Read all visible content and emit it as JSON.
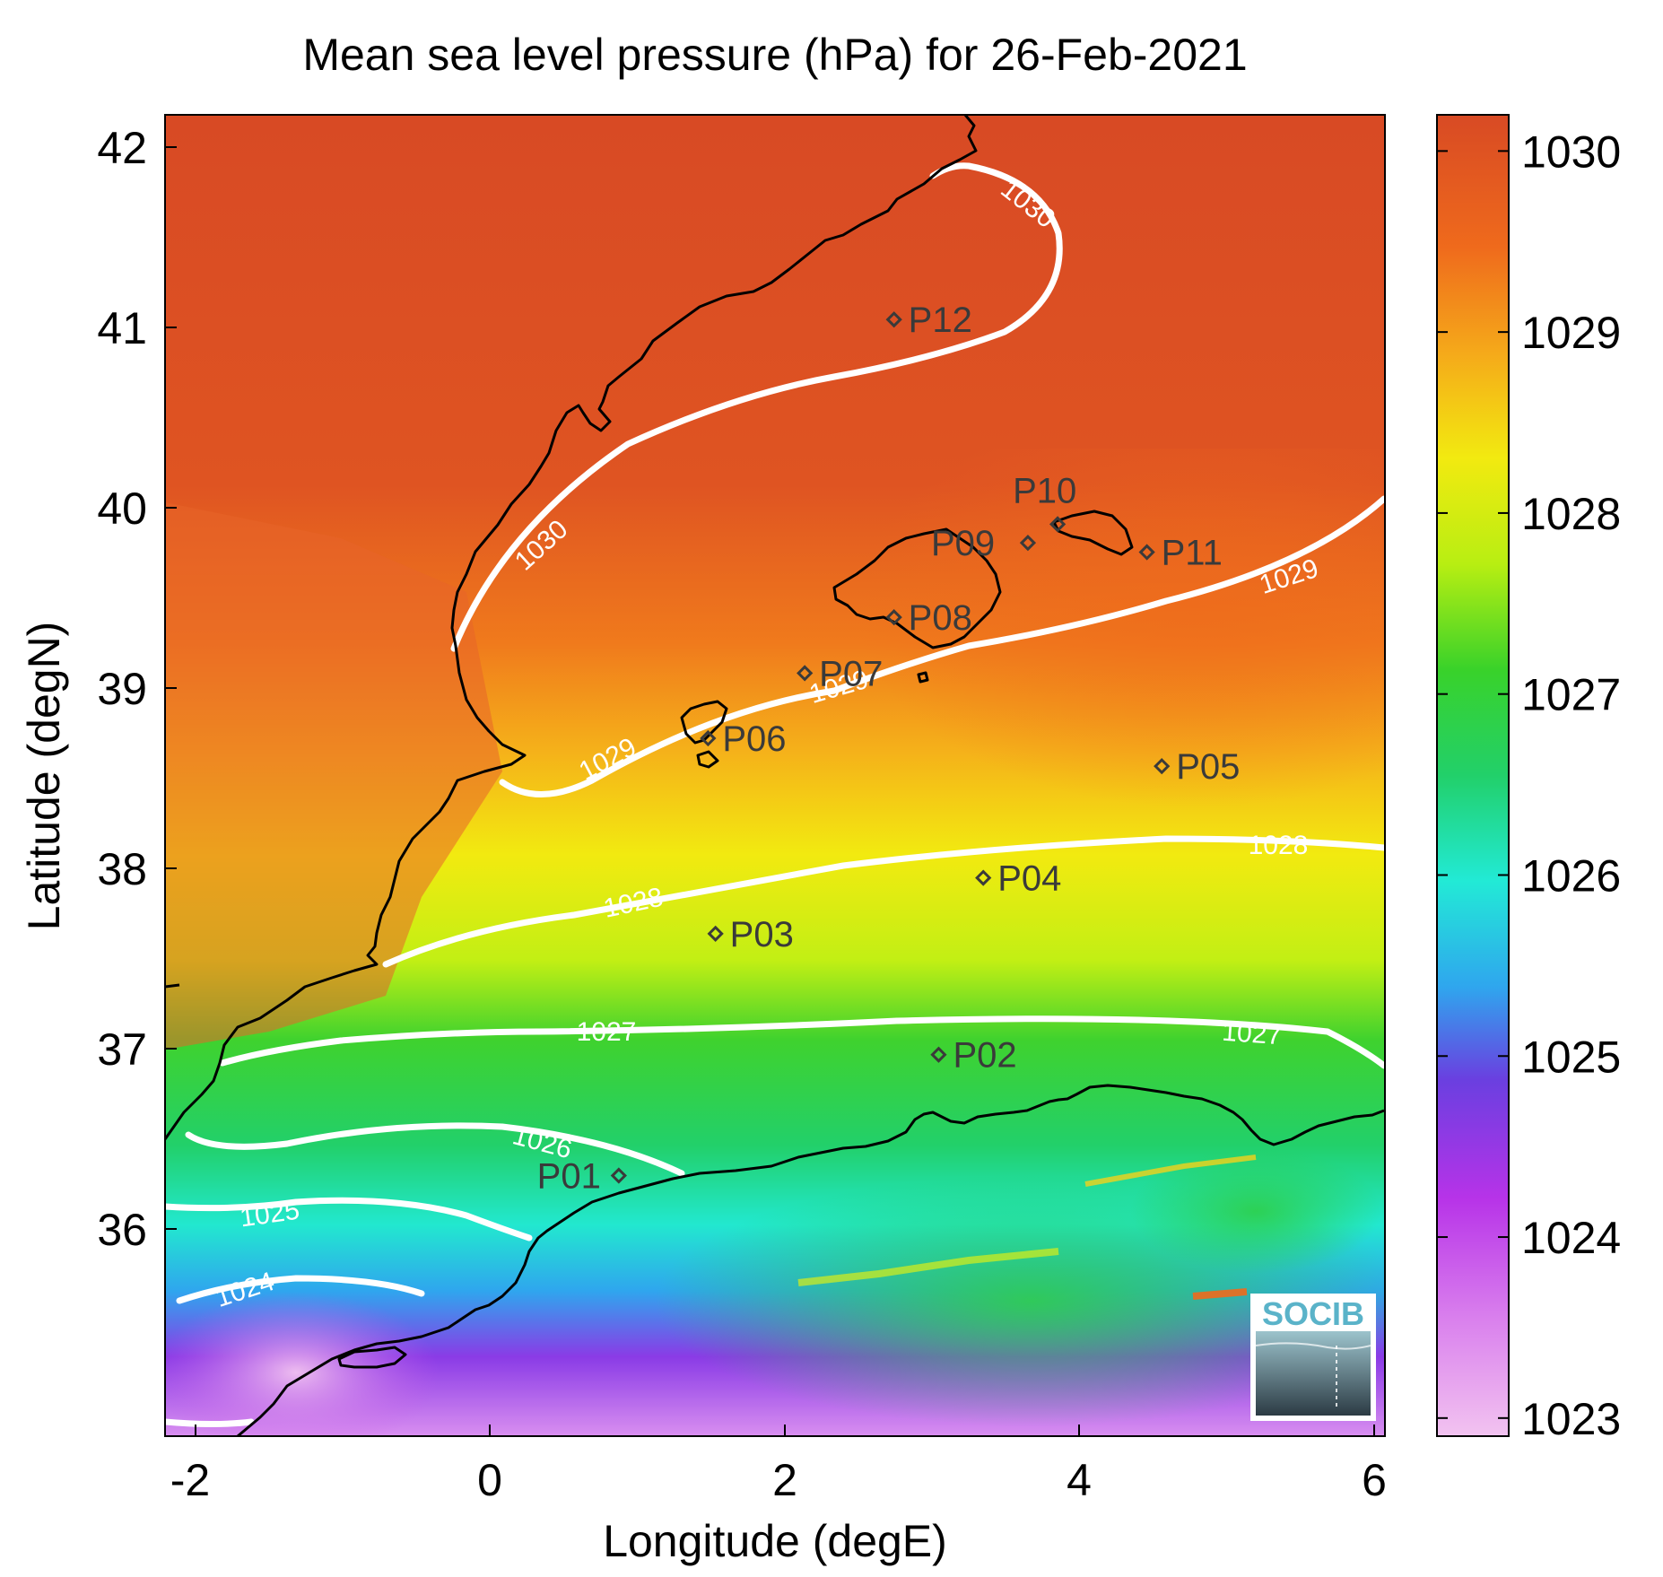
{
  "title": "Mean sea level pressure (hPa) for 26-Feb-2021",
  "xlabel": "Longitude (degE)",
  "ylabel": "Latitude (degN)",
  "x_ticks": [
    "-2",
    "0",
    "2",
    "4",
    "6"
  ],
  "y_ticks": [
    "42",
    "41",
    "40",
    "39",
    "38",
    "37",
    "36"
  ],
  "colorbar": {
    "ticks": [
      "1030",
      "1029",
      "1028",
      "1027",
      "1026",
      "1025",
      "1024",
      "1023"
    ],
    "range": [
      1022.9,
      1030.2
    ],
    "colors": [
      "#f2c3f0",
      "#b733e8",
      "#6a3fe0",
      "#2fa6ee",
      "#22ead6",
      "#22d06a",
      "#39d22a",
      "#b8ee12",
      "#f2ea10",
      "#f5a91a",
      "#ef6a1c",
      "#d84a24"
    ]
  },
  "contour_labels": [
    "1030",
    "1030",
    "1029",
    "1029",
    "1029",
    "1029",
    "1028",
    "1028",
    "1027",
    "1027",
    "1026",
    "1025",
    "1024"
  ],
  "stations": [
    "P01",
    "P02",
    "P03",
    "P04",
    "P05",
    "P06",
    "P07",
    "P08",
    "P09",
    "P10",
    "P11",
    "P12"
  ],
  "logo": {
    "text": "SOCIB"
  },
  "chart_data": {
    "type": "heatmap",
    "title": "Mean sea level pressure (hPa) for 26-Feb-2021",
    "xlabel": "Longitude (degE)",
    "ylabel": "Latitude (degN)",
    "xlim": [
      -2.2,
      6.0
    ],
    "ylim": [
      35.1,
      42.2
    ],
    "grid": false,
    "color_range": [
      1022.9,
      1030.2
    ],
    "contour_levels": [
      1024,
      1025,
      1026,
      1027,
      1028,
      1029,
      1030
    ],
    "stations": [
      {
        "name": "P01",
        "lon": 0.85,
        "lat": 36.5
      },
      {
        "name": "P02",
        "lon": 3.0,
        "lat": 37.15
      },
      {
        "name": "P03",
        "lon": 1.5,
        "lat": 37.8
      },
      {
        "name": "P04",
        "lon": 3.3,
        "lat": 38.1
      },
      {
        "name": "P05",
        "lon": 4.5,
        "lat": 38.7
      },
      {
        "name": "P06",
        "lon": 1.45,
        "lat": 38.85
      },
      {
        "name": "P07",
        "lon": 2.1,
        "lat": 39.2
      },
      {
        "name": "P08",
        "lon": 2.7,
        "lat": 39.5
      },
      {
        "name": "P09",
        "lon": 3.6,
        "lat": 39.9
      },
      {
        "name": "P10",
        "lon": 3.8,
        "lat": 40.0
      },
      {
        "name": "P11",
        "lon": 4.4,
        "lat": 39.85
      },
      {
        "name": "P12",
        "lon": 2.7,
        "lat": 41.1
      }
    ]
  }
}
